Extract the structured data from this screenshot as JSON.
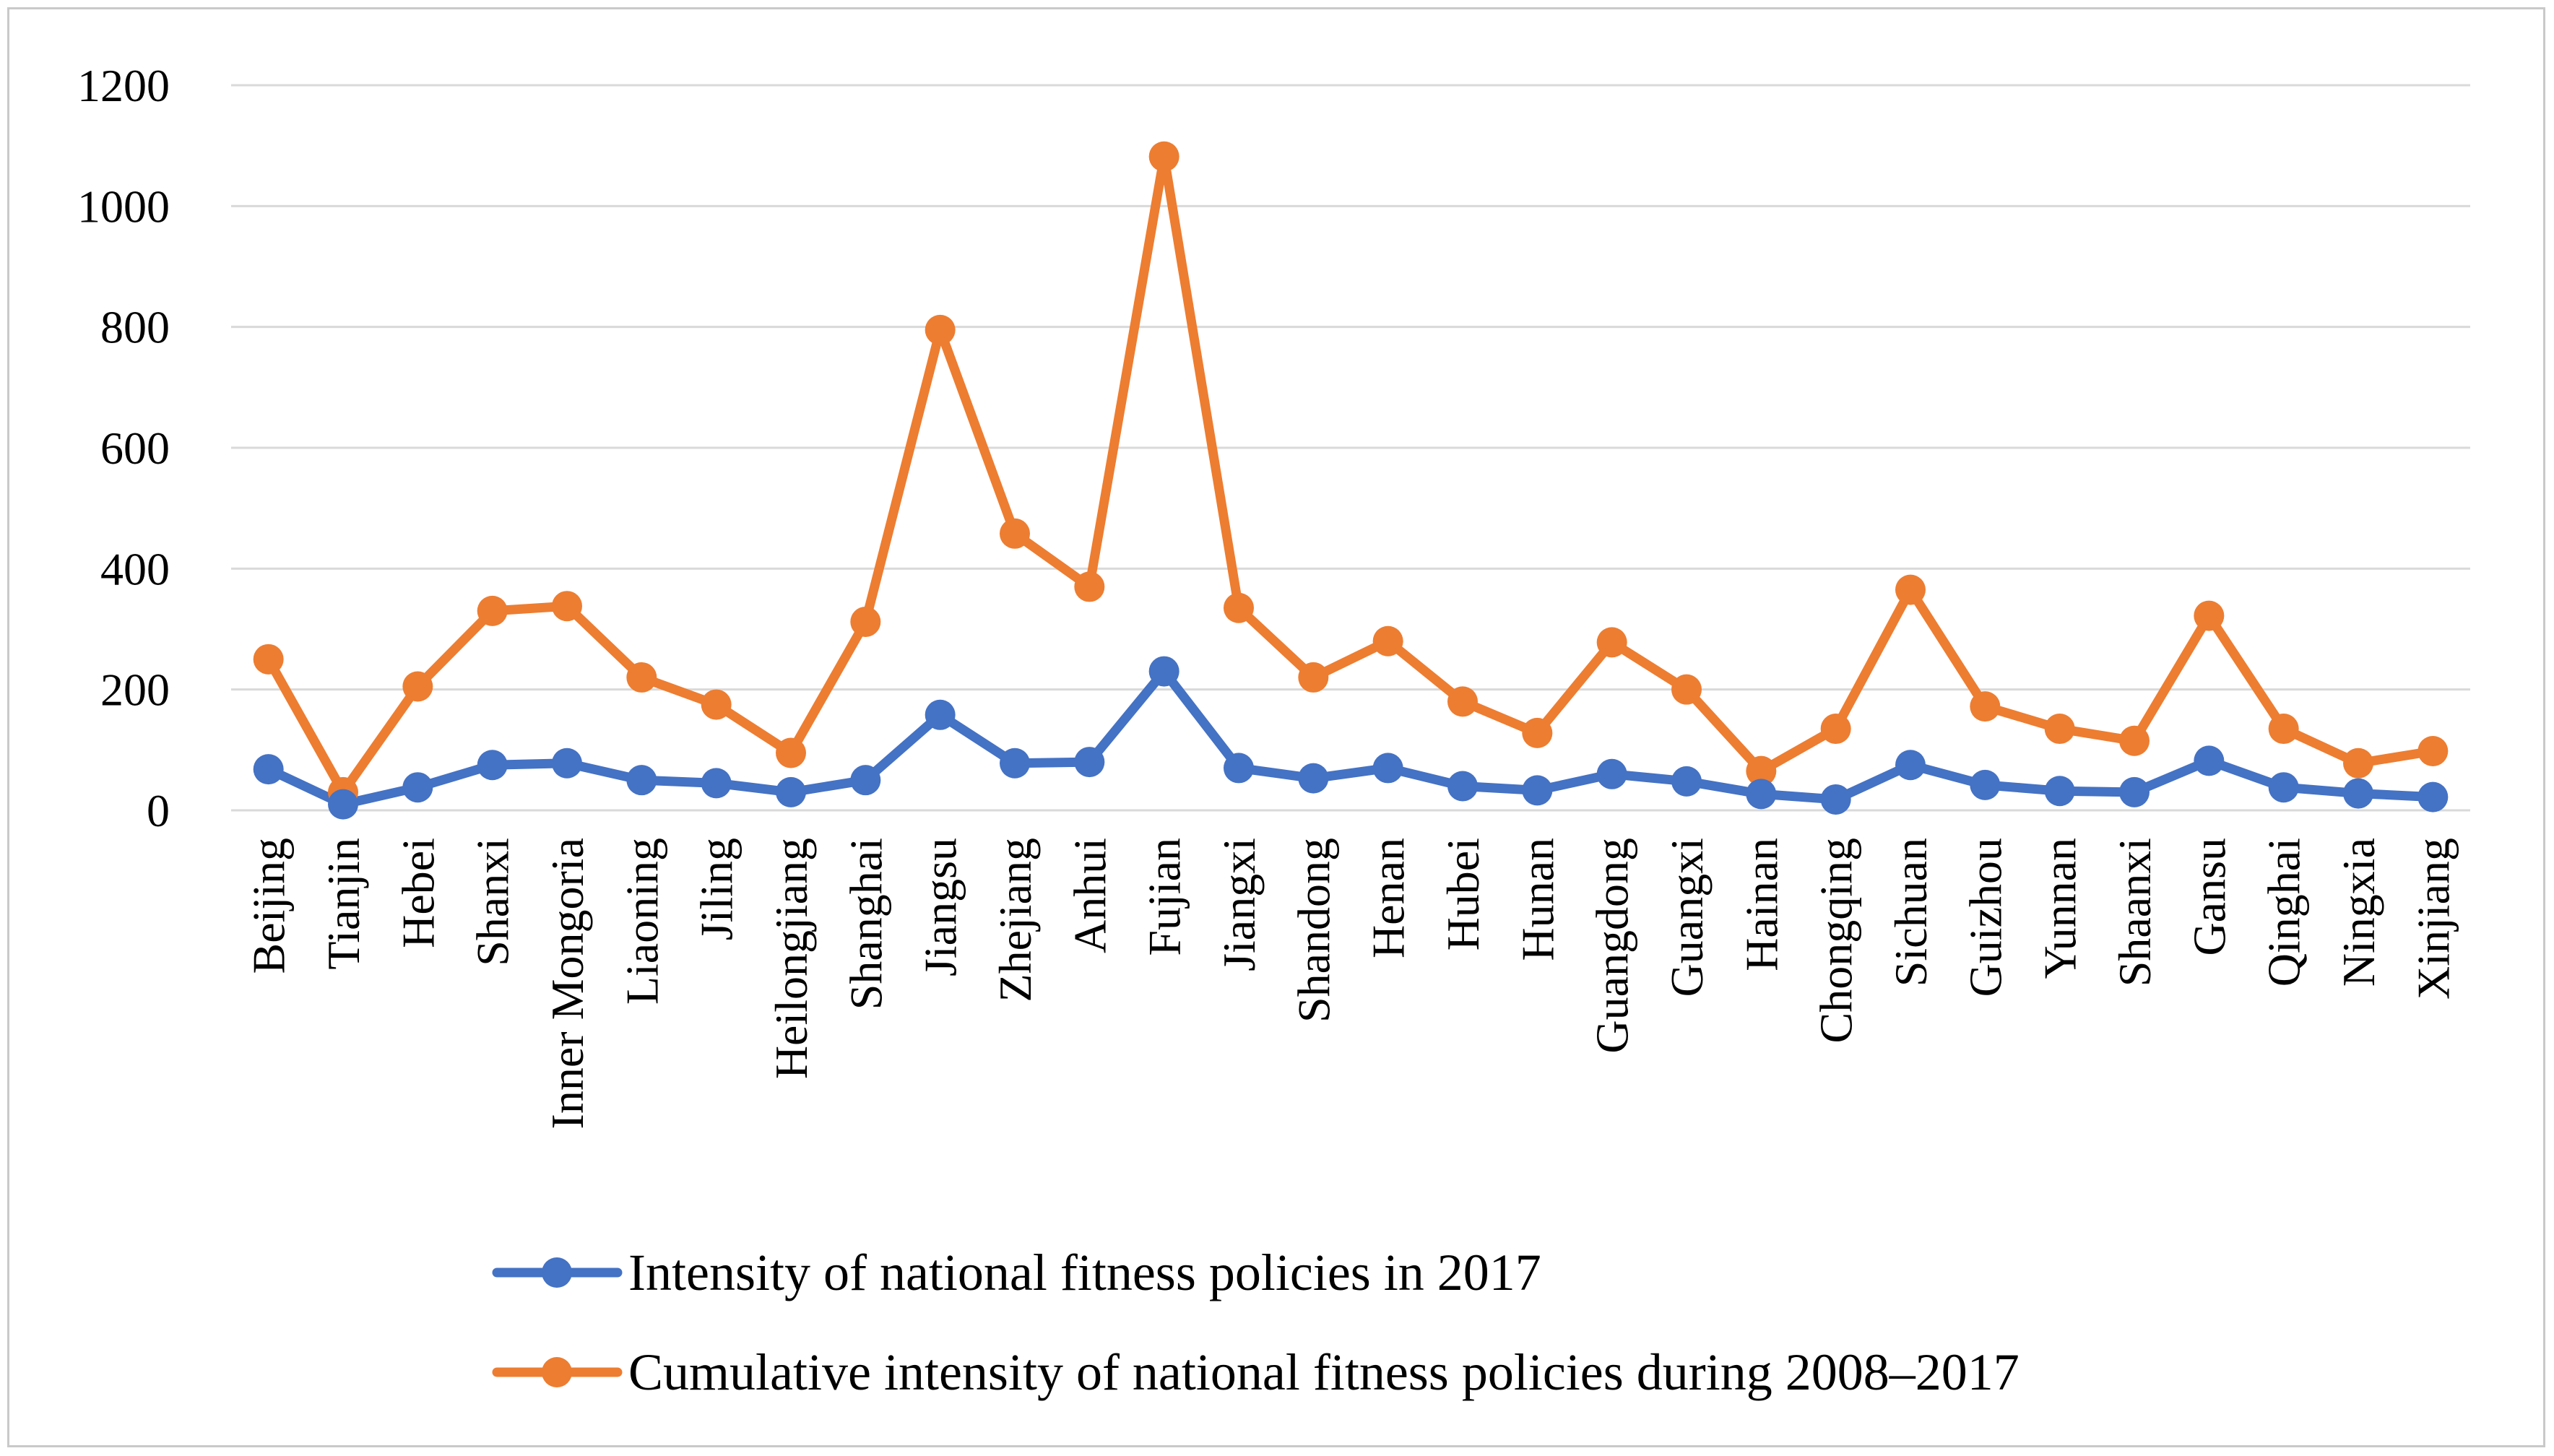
{
  "chart_data": {
    "type": "line",
    "title": "",
    "xlabel": "",
    "ylabel": "",
    "ylim": [
      0,
      1200
    ],
    "yticks": [
      0,
      200,
      400,
      600,
      800,
      1000,
      1200
    ],
    "grid": true,
    "legend_position": "bottom",
    "categories": [
      "Beijing",
      "Tianjin",
      "Hebei",
      "Shanxi",
      "Inner Mongoria",
      "Liaoning",
      "Jiling",
      "Heilongjiang",
      "Shanghai",
      "Jiangsu",
      "Zhejiang",
      "Anhui",
      "Fujian",
      "Jiangxi",
      "Shandong",
      "Henan",
      "Hubei",
      "Hunan",
      "Guangdong",
      "Guangxi",
      "Hainan",
      "Chongqing",
      "Sichuan",
      "Guizhou",
      "Yunnan",
      "Shaanxi",
      "Gansu",
      "Qinghai",
      "Ningxia",
      "Xinjiang"
    ],
    "series": [
      {
        "name": "Intensity of national fitness policies in 2017",
        "color": "#4472C4",
        "values": [
          68,
          10,
          38,
          75,
          78,
          50,
          45,
          30,
          50,
          158,
          78,
          80,
          230,
          70,
          53,
          70,
          40,
          33,
          60,
          48,
          27,
          18,
          75,
          42,
          32,
          30,
          82,
          38,
          28,
          22
        ]
      },
      {
        "name": "Cumulative intensity of national fitness policies during 2008–2017",
        "color": "#ED7D31",
        "values": [
          250,
          30,
          205,
          330,
          338,
          220,
          175,
          95,
          312,
          795,
          458,
          370,
          1082,
          335,
          220,
          280,
          180,
          128,
          278,
          200,
          65,
          135,
          365,
          172,
          135,
          115,
          322,
          135,
          78,
          98
        ]
      }
    ]
  }
}
